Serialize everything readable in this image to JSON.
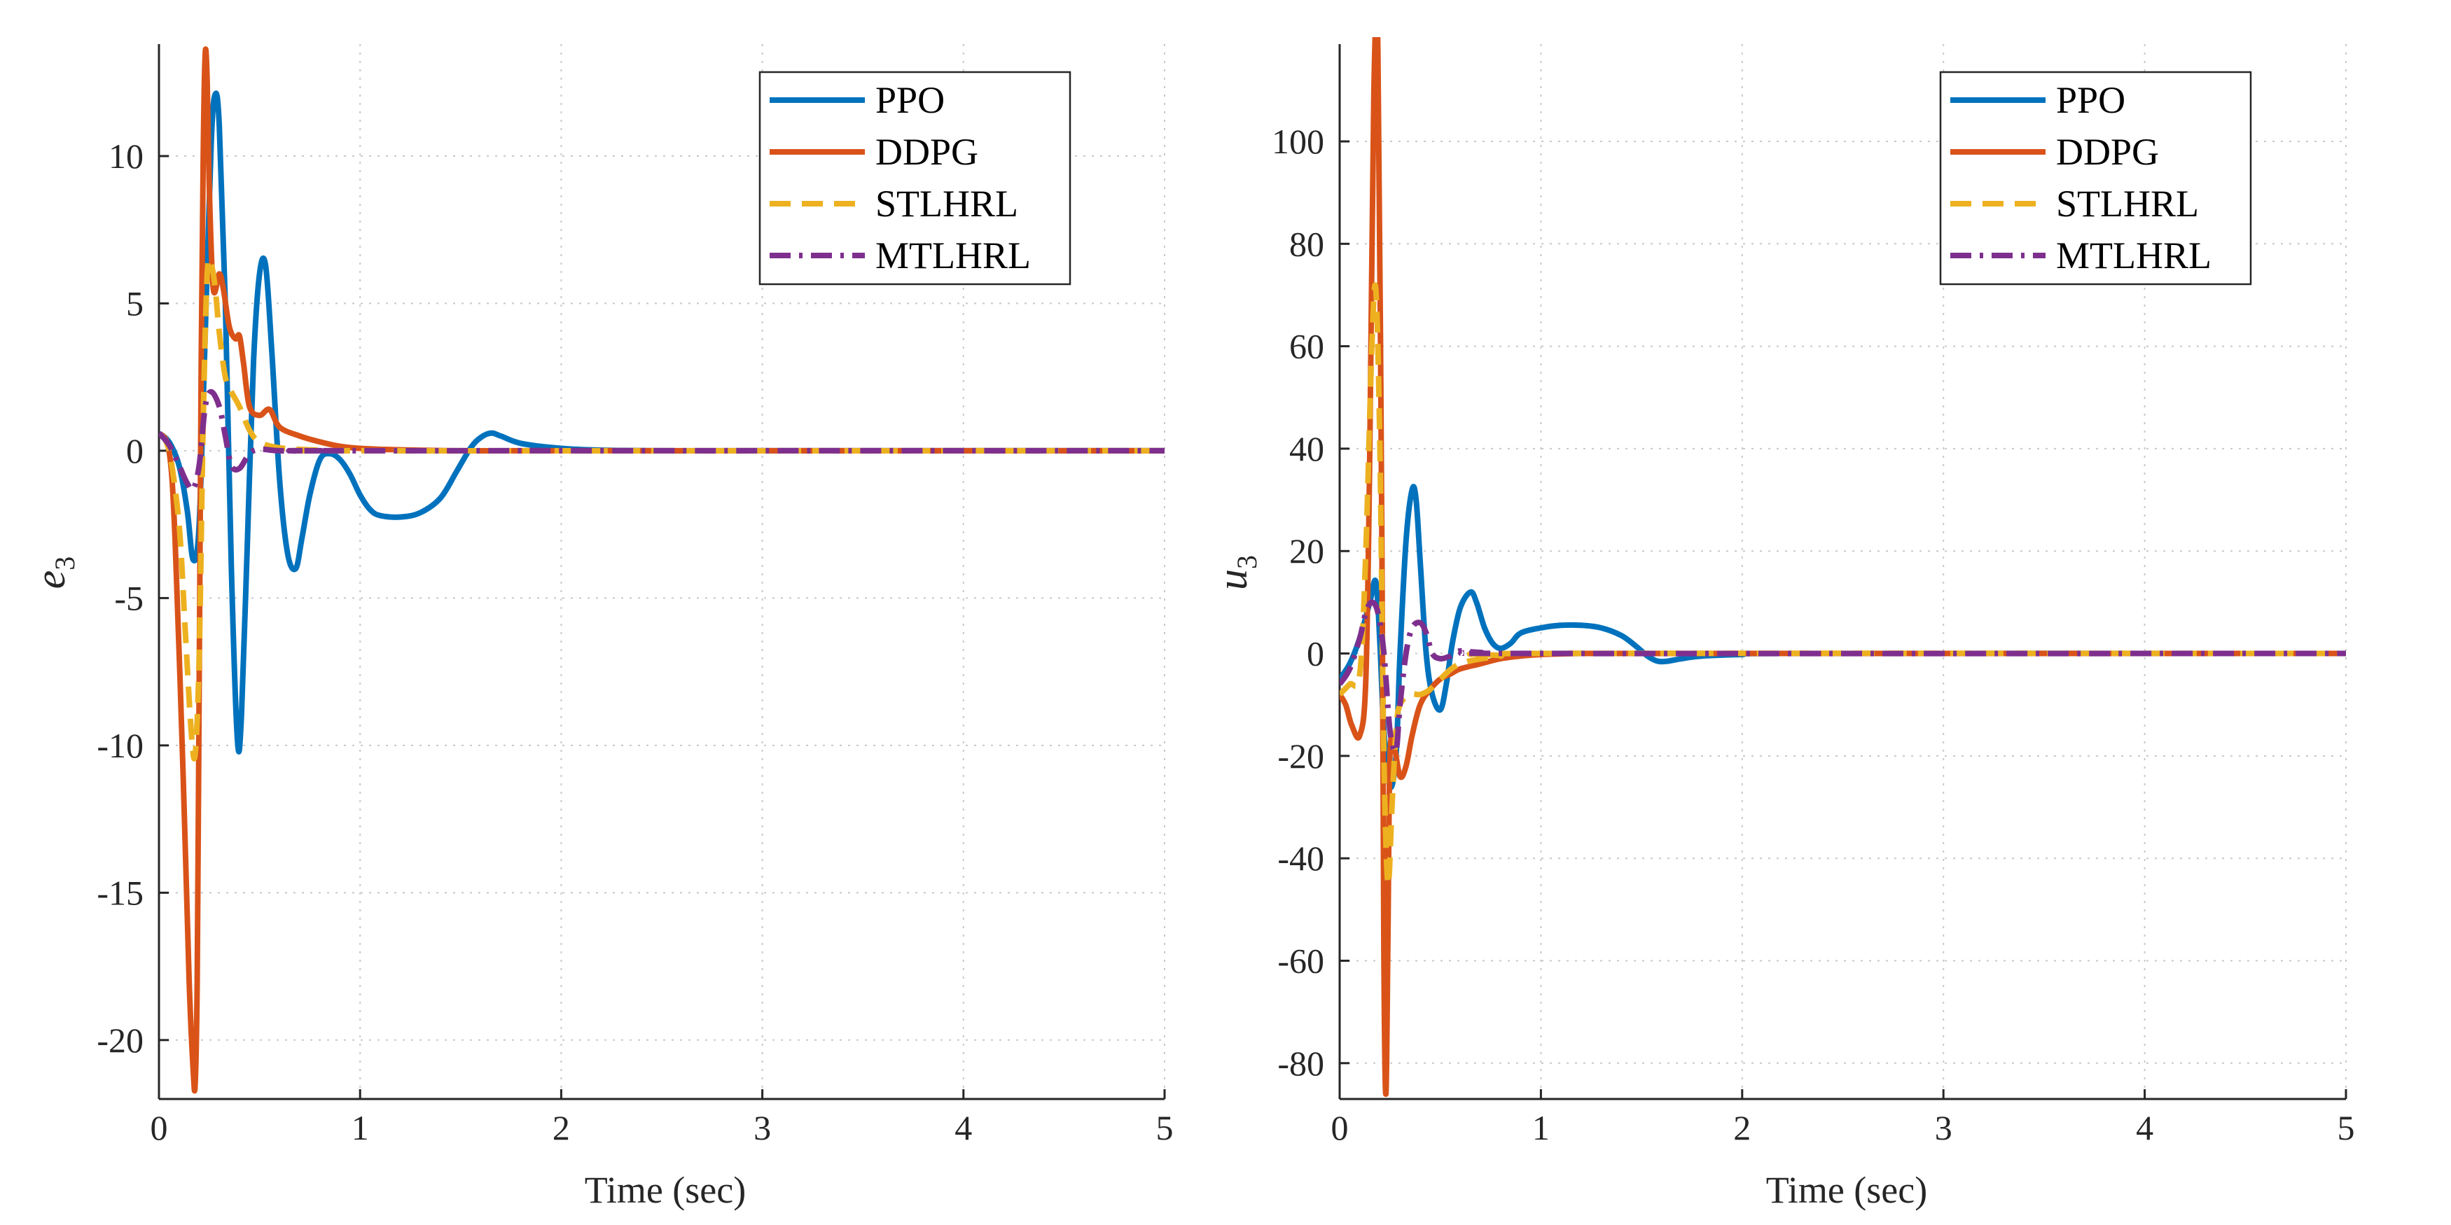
{
  "chart_data": [
    {
      "type": "line",
      "id": "left",
      "xlabel": "Time (sec)",
      "ylabel_base": "e",
      "ylabel_sub": "3",
      "xlim": [
        0,
        5
      ],
      "ylim": [
        -22,
        13.8
      ],
      "xticks": [
        0,
        1,
        2,
        3,
        4,
        5
      ],
      "yticks": [
        -20,
        -15,
        -10,
        -5,
        0,
        5,
        10
      ],
      "xtick_labels": [
        "0",
        "1",
        "2",
        "3",
        "4",
        "5"
      ],
      "ytick_labels": [
        "-20",
        "-15",
        "-10",
        "-5",
        "0",
        "5",
        "10"
      ],
      "grid": true,
      "legend_position": "top-right",
      "series": [
        {
          "name": "PPO",
          "color": "#0072BD",
          "style": "solid",
          "x": [
            0,
            0.05,
            0.1,
            0.14,
            0.17,
            0.2,
            0.23,
            0.26,
            0.28,
            0.3,
            0.33,
            0.36,
            0.39,
            0.41,
            0.44,
            0.47,
            0.5,
            0.53,
            0.56,
            0.6,
            0.64,
            0.68,
            0.71,
            0.75,
            0.8,
            0.85,
            0.9,
            0.95,
            1.0,
            1.05,
            1.1,
            1.2,
            1.3,
            1.4,
            1.48,
            1.55,
            1.6,
            1.65,
            1.7,
            1.8,
            2.0,
            2.2,
            2.5,
            3.0,
            5.0
          ],
          "y": [
            0.6,
            0.3,
            -0.5,
            -2.0,
            -3.7,
            -2.5,
            4.0,
            10.5,
            12.1,
            11.0,
            5.0,
            -4.0,
            -9.8,
            -9.0,
            -3.0,
            3.0,
            6.0,
            6.3,
            3.5,
            -1.0,
            -3.5,
            -4.0,
            -3.0,
            -1.5,
            -0.3,
            -0.1,
            -0.3,
            -0.8,
            -1.5,
            -2.0,
            -2.2,
            -2.25,
            -2.1,
            -1.6,
            -0.7,
            0.1,
            0.45,
            0.6,
            0.5,
            0.25,
            0.08,
            0.02,
            0.0,
            0.0,
            0.0
          ]
        },
        {
          "name": "DDPG",
          "color": "#D95319",
          "style": "solid",
          "x": [
            0,
            0.05,
            0.08,
            0.12,
            0.15,
            0.17,
            0.18,
            0.19,
            0.2,
            0.21,
            0.22,
            0.23,
            0.24,
            0.25,
            0.27,
            0.3,
            0.32,
            0.35,
            0.38,
            0.4,
            0.42,
            0.45,
            0.5,
            0.55,
            0.6,
            0.7,
            0.8,
            0.9,
            1.0,
            1.2,
            1.5,
            2.0,
            5.0
          ],
          "y": [
            0.6,
            0.0,
            -3.0,
            -11.0,
            -18.0,
            -21.0,
            -21.5,
            -18.0,
            -8.0,
            3.0,
            10.0,
            13.5,
            12.5,
            9.0,
            5.5,
            6.0,
            5.5,
            4.2,
            3.8,
            3.9,
            3.0,
            1.5,
            1.2,
            1.4,
            0.8,
            0.5,
            0.3,
            0.15,
            0.08,
            0.03,
            0.0,
            0.0,
            0.0
          ]
        },
        {
          "name": "STLHRL",
          "color": "#EDB120",
          "style": "dashed",
          "x": [
            0,
            0.05,
            0.1,
            0.13,
            0.16,
            0.18,
            0.2,
            0.22,
            0.24,
            0.26,
            0.28,
            0.3,
            0.33,
            0.36,
            0.4,
            0.45,
            0.5,
            0.6,
            0.8,
            1.0,
            5.0
          ],
          "y": [
            0.6,
            0.0,
            -2.5,
            -6.0,
            -9.5,
            -10.3,
            -7.0,
            1.0,
            6.0,
            6.3,
            5.5,
            4.0,
            2.5,
            2.0,
            1.5,
            0.7,
            0.3,
            0.1,
            0.02,
            0.0,
            0.0
          ]
        },
        {
          "name": "MTLHRL",
          "color": "#7E2F8E",
          "style": "dashdot",
          "x": [
            0,
            0.05,
            0.1,
            0.14,
            0.17,
            0.2,
            0.23,
            0.26,
            0.3,
            0.33,
            0.36,
            0.4,
            0.45,
            0.5,
            0.6,
            0.8,
            1.0,
            5.0
          ],
          "y": [
            0.6,
            0.2,
            -0.5,
            -1.1,
            -1.3,
            -0.5,
            1.5,
            2.0,
            1.5,
            0.5,
            -0.5,
            -0.6,
            -0.1,
            0.05,
            0.0,
            0.0,
            0.0,
            0.0
          ]
        }
      ]
    },
    {
      "type": "line",
      "id": "right",
      "xlabel": "Time (sec)",
      "ylabel_base": "u",
      "ylabel_sub": "3",
      "xlim": [
        0,
        5
      ],
      "ylim": [
        -87,
        119
      ],
      "xticks": [
        0,
        1,
        2,
        3,
        4,
        5
      ],
      "yticks": [
        -80,
        -60,
        -40,
        -20,
        0,
        20,
        40,
        60,
        80,
        100
      ],
      "xtick_labels": [
        "0",
        "1",
        "2",
        "3",
        "4",
        "5"
      ],
      "ytick_labels": [
        "-80",
        "-60",
        "-40",
        "-20",
        "0",
        "20",
        "40",
        "60",
        "80",
        "100"
      ],
      "grid": true,
      "legend_position": "top-right",
      "series": [
        {
          "name": "PPO",
          "color": "#0072BD",
          "style": "solid",
          "x": [
            0,
            0.05,
            0.1,
            0.15,
            0.18,
            0.2,
            0.22,
            0.25,
            0.28,
            0.3,
            0.33,
            0.36,
            0.38,
            0.4,
            0.43,
            0.46,
            0.5,
            0.53,
            0.56,
            0.6,
            0.65,
            0.68,
            0.72,
            0.76,
            0.8,
            0.85,
            0.9,
            1.0,
            1.1,
            1.2,
            1.3,
            1.4,
            1.47,
            1.53,
            1.58,
            1.63,
            1.7,
            1.8,
            2.0,
            2.2,
            5.0
          ],
          "y": [
            -5,
            -2,
            3,
            10,
            14,
            2,
            -15,
            -26,
            -20,
            0,
            22,
            32,
            30,
            18,
            0,
            -8,
            -11,
            -6,
            2,
            9,
            12,
            10,
            5,
            2,
            1,
            2,
            4,
            5,
            5.5,
            5.5,
            5,
            3.5,
            1.5,
            -0.5,
            -1.5,
            -1.5,
            -1,
            -0.5,
            -0.2,
            0,
            0
          ]
        },
        {
          "name": "DDPG",
          "color": "#D95319",
          "style": "solid",
          "x": [
            0,
            0.03,
            0.06,
            0.1,
            0.13,
            0.15,
            0.17,
            0.19,
            0.21,
            0.22,
            0.23,
            0.24,
            0.25,
            0.27,
            0.3,
            0.33,
            0.36,
            0.4,
            0.45,
            0.5,
            0.55,
            0.6,
            0.7,
            0.8,
            0.9,
            1.0,
            1.2,
            1.5,
            5.0
          ],
          "y": [
            -8,
            -10,
            -14,
            -16,
            -5,
            40,
            110,
            118,
            20,
            -60,
            -86,
            -55,
            -20,
            -18,
            -24,
            -22,
            -16,
            -10,
            -7,
            -5,
            -4,
            -3,
            -2,
            -1,
            -0.5,
            -0.2,
            0,
            0,
            0
          ]
        },
        {
          "name": "STLHRL",
          "color": "#EDB120",
          "style": "dashed",
          "x": [
            0,
            0.05,
            0.1,
            0.13,
            0.16,
            0.18,
            0.2,
            0.22,
            0.24,
            0.26,
            0.28,
            0.3,
            0.35,
            0.4,
            0.45,
            0.5,
            0.6,
            0.8,
            1.0,
            5.0
          ],
          "y": [
            -8,
            -6,
            -4,
            20,
            60,
            71,
            40,
            -20,
            -45,
            -30,
            -15,
            -10,
            -8,
            -8,
            -7,
            -5,
            -2,
            -0.5,
            0,
            0
          ]
        },
        {
          "name": "MTLHRL",
          "color": "#7E2F8E",
          "style": "dashdot",
          "x": [
            0,
            0.05,
            0.1,
            0.13,
            0.16,
            0.19,
            0.22,
            0.25,
            0.28,
            0.3,
            0.33,
            0.36,
            0.4,
            0.43,
            0.46,
            0.5,
            0.55,
            0.6,
            0.7,
            1.0,
            5.0
          ],
          "y": [
            -6,
            -3,
            3,
            8,
            10,
            8,
            0,
            -15,
            -19,
            -10,
            0,
            5,
            6,
            4,
            0,
            -1,
            -0.5,
            0.5,
            0.2,
            0,
            0
          ]
        }
      ]
    }
  ]
}
